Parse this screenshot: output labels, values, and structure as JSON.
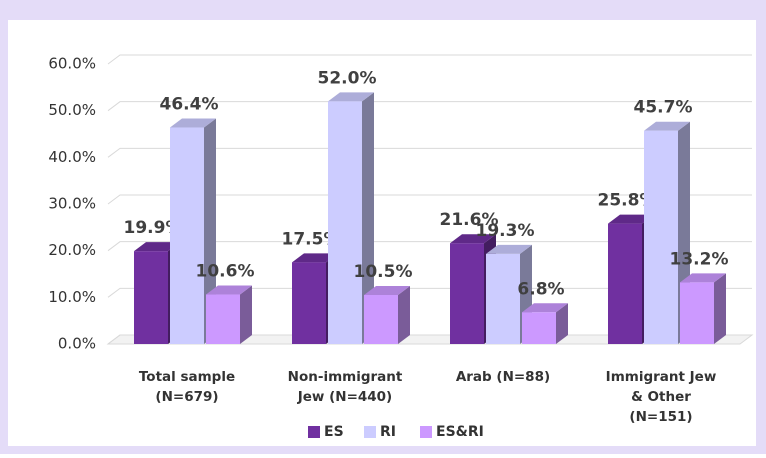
{
  "chart_data": {
    "type": "bar3d",
    "categories": [
      [
        "Total sample",
        "(N=679)"
      ],
      [
        "Non-immigrant",
        "Jew (N=440)"
      ],
      [
        "Arab (N=88)"
      ],
      [
        "Immigrant Jew",
        "& Other",
        "(N=151)"
      ]
    ],
    "series": [
      {
        "name": "ES",
        "color": "#7030a0",
        "values": [
          19.9,
          17.5,
          21.6,
          25.8
        ],
        "value_labels": [
          "19.9%",
          "17.5%",
          "21.6%",
          "25.8%"
        ]
      },
      {
        "name": "RI",
        "color": "#ccccff",
        "values": [
          46.4,
          52.0,
          19.3,
          45.7
        ],
        "value_labels": [
          "46.4%",
          "52.0%",
          "19.3%",
          "45.7%"
        ]
      },
      {
        "name": "ES&RI",
        "color": "#cc99ff",
        "values": [
          10.6,
          10.5,
          6.8,
          13.2
        ],
        "value_labels": [
          "10.6%",
          "10.5%",
          "6.8%",
          "13.2%"
        ]
      }
    ],
    "ylim": [
      0,
      60
    ],
    "yticks": [
      {
        "value": 0,
        "label": "0.0%"
      },
      {
        "value": 10,
        "label": "10.0%"
      },
      {
        "value": 20,
        "label": "20.0%"
      },
      {
        "value": 30,
        "label": "30.0%"
      },
      {
        "value": 40,
        "label": "40.0%"
      },
      {
        "value": 50,
        "label": "50.0%"
      },
      {
        "value": 60,
        "label": "60.0%"
      }
    ],
    "grid": true,
    "legend": "bottom"
  }
}
